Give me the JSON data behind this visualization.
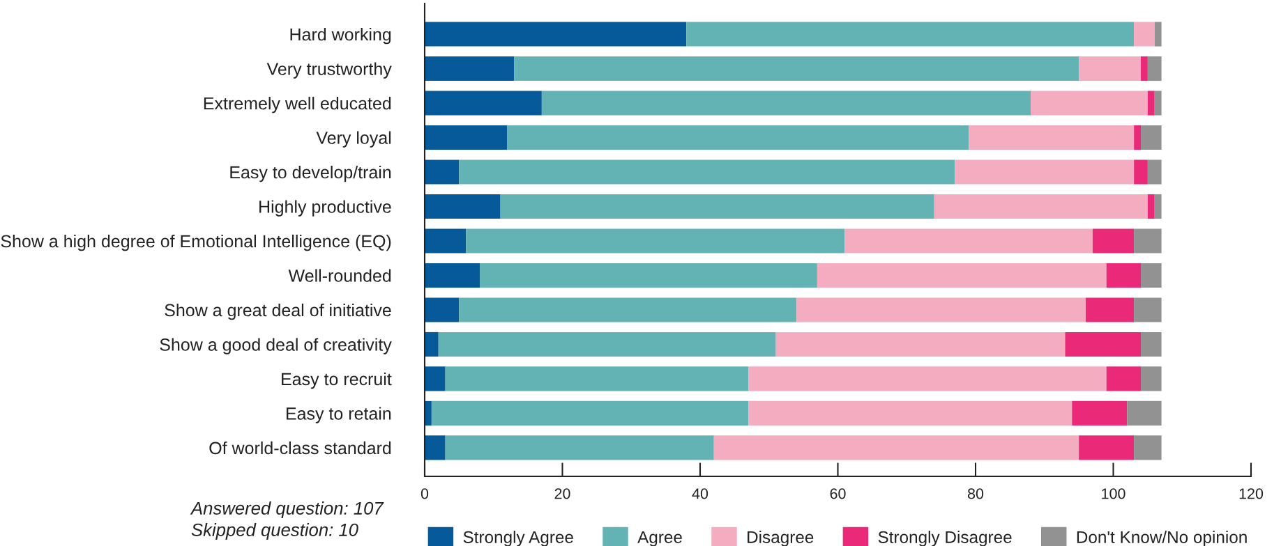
{
  "chart_data": {
    "type": "bar",
    "orientation": "horizontal",
    "stacked": true,
    "categories": [
      "Hard working",
      "Very trustworthy",
      "Extremely well educated",
      "Very loyal",
      "Easy to develop/train",
      "Highly productive",
      "Show a high degree of Emotional Intelligence (EQ)",
      "Well-rounded",
      "Show a great deal of initiative",
      "Show a good deal of creativity",
      "Easy to recruit",
      "Easy to retain",
      "Of world-class standard"
    ],
    "series": [
      {
        "name": "Strongly Agree",
        "color": "#065a9a",
        "values": [
          38,
          13,
          17,
          12,
          5,
          11,
          6,
          8,
          5,
          2,
          3,
          1,
          3
        ]
      },
      {
        "name": "Agree",
        "color": "#63b2b4",
        "values": [
          65,
          82,
          71,
          67,
          72,
          63,
          55,
          49,
          49,
          49,
          44,
          46,
          39
        ]
      },
      {
        "name": "Disagree",
        "color": "#f4adc0",
        "values": [
          3,
          9,
          17,
          24,
          26,
          31,
          36,
          42,
          42,
          42,
          52,
          47,
          53
        ]
      },
      {
        "name": "Strongly Disagree",
        "color": "#ea2a78",
        "values": [
          0,
          1,
          1,
          1,
          2,
          1,
          6,
          5,
          7,
          11,
          5,
          8,
          8
        ]
      },
      {
        "name": "Don't Know/No opinion",
        "color": "#929292",
        "values": [
          1,
          2,
          1,
          3,
          2,
          1,
          4,
          3,
          4,
          3,
          3,
          5,
          4
        ]
      }
    ],
    "xlim": [
      0,
      120
    ],
    "xticks": [
      0,
      20,
      40,
      60,
      80,
      100,
      120
    ],
    "grid": false,
    "legend": "bottom",
    "annotations": [
      "Answered question: 107",
      "Skipped question: 10"
    ]
  }
}
